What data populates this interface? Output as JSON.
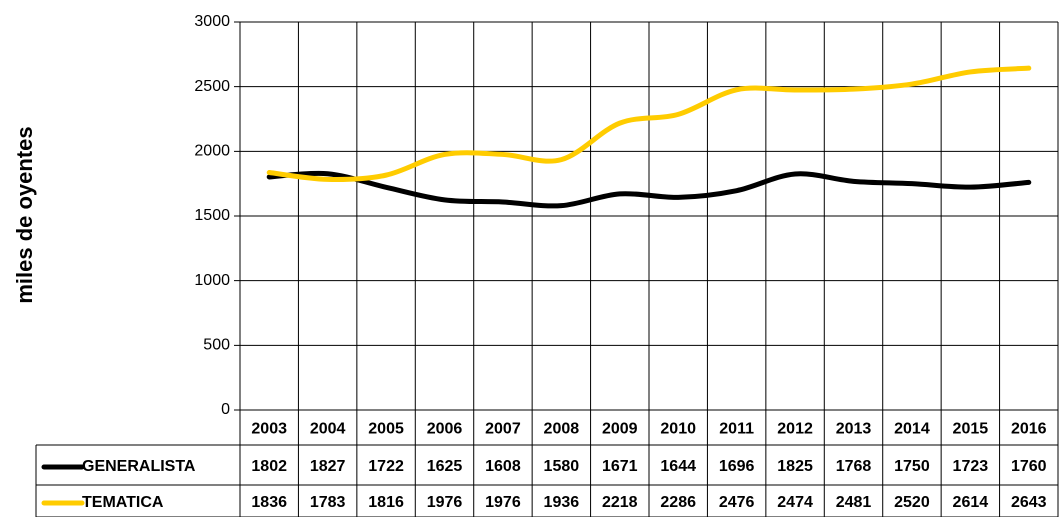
{
  "chart_data": {
    "type": "line",
    "y_label": "miles de oyentes",
    "categories": [
      "2003",
      "2004",
      "2005",
      "2006",
      "2007",
      "2008",
      "2009",
      "2010",
      "2011",
      "2012",
      "2013",
      "2014",
      "2015",
      "2016"
    ],
    "series": [
      {
        "name": "GENERALISTA",
        "color": "#000000",
        "values": [
          1802,
          1827,
          1722,
          1625,
          1608,
          1580,
          1671,
          1644,
          1696,
          1825,
          1768,
          1750,
          1723,
          1760
        ]
      },
      {
        "name": "TEMATICA",
        "color": "#ffcc00",
        "values": [
          1836,
          1783,
          1816,
          1976,
          1976,
          1936,
          2218,
          2286,
          2476,
          2474,
          2481,
          2520,
          2614,
          2643
        ]
      }
    ],
    "ylim": [
      0,
      3000
    ],
    "yticks": [
      0,
      500,
      1000,
      1500,
      2000,
      2500,
      3000
    ],
    "grid": true
  }
}
